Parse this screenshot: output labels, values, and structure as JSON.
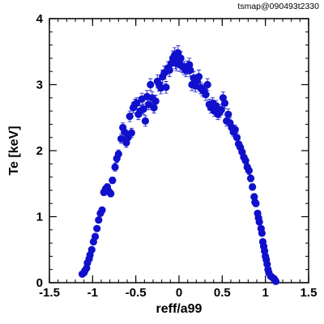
{
  "header": {
    "tag": "tsmap@090493t2330"
  },
  "chart_data": {
    "type": "scatter",
    "title": "",
    "xlabel": "reff/a99",
    "ylabel": "Te [keV]",
    "xlim": [
      -1.5,
      1.5
    ],
    "ylim": [
      0,
      4
    ],
    "xticks": [
      -1.5,
      -1,
      -0.5,
      0,
      0.5,
      1,
      1.5
    ],
    "xtick_labels": [
      "-1.5",
      "-1",
      "-0.5",
      "0",
      "0.5",
      "1",
      "1.5"
    ],
    "yticks": [
      0,
      1,
      2,
      3,
      4
    ],
    "ytick_labels": [
      "0",
      "1",
      "2",
      "3",
      "4"
    ],
    "grid": false,
    "marker_color": "#1010cc",
    "error_bars": true,
    "series": [
      {
        "points": [
          [
            -1.12,
            0.13,
            0.02
          ],
          [
            -1.1,
            0.15,
            0.02
          ],
          [
            -1.09,
            0.18,
            0.02
          ],
          [
            -1.07,
            0.22,
            0.02
          ],
          [
            -1.06,
            0.3,
            0.02
          ],
          [
            -1.04,
            0.36,
            0.02
          ],
          [
            -1.03,
            0.42,
            0.02
          ],
          [
            -1.01,
            0.5,
            0.03
          ],
          [
            -0.99,
            0.62,
            0.03
          ],
          [
            -0.97,
            0.7,
            0.03
          ],
          [
            -0.95,
            0.82,
            0.03
          ],
          [
            -0.93,
            0.95,
            0.04
          ],
          [
            -0.91,
            1.05,
            0.04
          ],
          [
            -0.89,
            1.1,
            0.04
          ],
          [
            -0.87,
            1.37,
            0.05
          ],
          [
            -0.85,
            1.42,
            0.05
          ],
          [
            -0.83,
            1.45,
            0.05
          ],
          [
            -0.81,
            1.38,
            0.05
          ],
          [
            -0.79,
            1.35,
            0.05
          ],
          [
            -0.77,
            1.55,
            0.05
          ],
          [
            -0.74,
            1.75,
            0.06
          ],
          [
            -0.72,
            1.88,
            0.06
          ],
          [
            -0.7,
            1.95,
            0.06
          ],
          [
            -0.67,
            2.18,
            0.07
          ],
          [
            -0.65,
            2.35,
            0.07
          ],
          [
            -0.63,
            2.28,
            0.07
          ],
          [
            -0.61,
            2.12,
            0.07
          ],
          [
            -0.59,
            2.2,
            0.07
          ],
          [
            -0.57,
            2.52,
            0.08
          ],
          [
            -0.55,
            2.27,
            0.07
          ],
          [
            -0.53,
            2.65,
            0.08
          ],
          [
            -0.51,
            2.7,
            0.08
          ],
          [
            -0.49,
            2.72,
            0.08
          ],
          [
            -0.47,
            2.55,
            0.08
          ],
          [
            -0.45,
            2.6,
            0.08
          ],
          [
            -0.43,
            2.78,
            0.09
          ],
          [
            -0.41,
            2.63,
            0.08
          ],
          [
            -0.39,
            2.45,
            0.08
          ],
          [
            -0.37,
            2.82,
            0.09
          ],
          [
            -0.35,
            2.7,
            0.08
          ],
          [
            -0.33,
            3.0,
            0.09
          ],
          [
            -0.31,
            2.8,
            0.09
          ],
          [
            -0.29,
            2.65,
            0.08
          ],
          [
            -0.27,
            2.75,
            0.09
          ],
          [
            -0.25,
            3.05,
            0.1
          ],
          [
            -0.23,
            3.0,
            0.1
          ],
          [
            -0.21,
            2.95,
            0.09
          ],
          [
            -0.19,
            3.12,
            0.1
          ],
          [
            -0.17,
            3.18,
            0.1
          ],
          [
            -0.15,
            2.96,
            0.09
          ],
          [
            -0.13,
            3.25,
            0.1
          ],
          [
            -0.11,
            3.22,
            0.1
          ],
          [
            -0.09,
            3.32,
            0.1
          ],
          [
            -0.07,
            3.4,
            0.11
          ],
          [
            -0.05,
            3.45,
            0.11
          ],
          [
            -0.04,
            3.35,
            0.11
          ],
          [
            -0.03,
            3.32,
            0.11
          ],
          [
            -0.02,
            3.42,
            0.11
          ],
          [
            -0.01,
            3.48,
            0.11
          ],
          [
            0.0,
            3.38,
            0.11
          ],
          [
            0.01,
            3.3,
            0.1
          ],
          [
            0.02,
            3.4,
            0.1
          ],
          [
            0.04,
            3.28,
            0.1
          ],
          [
            0.06,
            3.25,
            0.1
          ],
          [
            0.08,
            3.22,
            0.1
          ],
          [
            0.1,
            3.26,
            0.1
          ],
          [
            0.12,
            3.3,
            0.1
          ],
          [
            0.13,
            3.22,
            0.1
          ],
          [
            0.15,
            3.0,
            0.09
          ],
          [
            0.17,
            3.1,
            0.1
          ],
          [
            0.19,
            2.98,
            0.09
          ],
          [
            0.21,
            3.05,
            0.1
          ],
          [
            0.23,
            3.12,
            0.1
          ],
          [
            0.25,
            2.95,
            0.09
          ],
          [
            0.27,
            2.92,
            0.09
          ],
          [
            0.29,
            2.9,
            0.09
          ],
          [
            0.31,
            2.85,
            0.09
          ],
          [
            0.33,
            3.0,
            0.09
          ],
          [
            0.35,
            2.7,
            0.08
          ],
          [
            0.37,
            2.65,
            0.08
          ],
          [
            0.39,
            2.72,
            0.08
          ],
          [
            0.41,
            2.6,
            0.08
          ],
          [
            0.43,
            2.68,
            0.08
          ],
          [
            0.45,
            2.55,
            0.08
          ],
          [
            0.47,
            2.58,
            0.08
          ],
          [
            0.49,
            2.62,
            0.08
          ],
          [
            0.51,
            2.8,
            0.09
          ],
          [
            0.53,
            2.72,
            0.08
          ],
          [
            0.55,
            2.45,
            0.08
          ],
          [
            0.57,
            2.55,
            0.08
          ],
          [
            0.59,
            2.42,
            0.08
          ],
          [
            0.61,
            2.35,
            0.07
          ],
          [
            0.63,
            2.28,
            0.07
          ],
          [
            0.65,
            2.32,
            0.07
          ],
          [
            0.67,
            2.2,
            0.07
          ],
          [
            0.69,
            2.1,
            0.07
          ],
          [
            0.71,
            2.05,
            0.07
          ],
          [
            0.73,
            1.98,
            0.06
          ],
          [
            0.75,
            1.9,
            0.06
          ],
          [
            0.77,
            1.85,
            0.06
          ],
          [
            0.79,
            1.75,
            0.06
          ],
          [
            0.81,
            1.7,
            0.06
          ],
          [
            0.83,
            1.58,
            0.05
          ],
          [
            0.85,
            1.45,
            0.05
          ],
          [
            0.87,
            1.3,
            0.05
          ],
          [
            0.88,
            1.22,
            0.05
          ],
          [
            0.89,
            1.2,
            0.05
          ],
          [
            0.91,
            1.05,
            0.04
          ],
          [
            0.92,
            0.98,
            0.04
          ],
          [
            0.93,
            0.92,
            0.04
          ],
          [
            0.95,
            0.82,
            0.03
          ],
          [
            0.96,
            0.75,
            0.03
          ],
          [
            0.97,
            0.62,
            0.03
          ],
          [
            0.98,
            0.55,
            0.03
          ],
          [
            0.99,
            0.48,
            0.03
          ],
          [
            1.0,
            0.4,
            0.02
          ],
          [
            1.01,
            0.35,
            0.02
          ],
          [
            1.02,
            0.28,
            0.02
          ],
          [
            1.03,
            0.2,
            0.02
          ],
          [
            1.04,
            0.15,
            0.02
          ],
          [
            1.06,
            0.1,
            0.02
          ],
          [
            1.08,
            0.08,
            0.02
          ],
          [
            1.1,
            0.06,
            0.02
          ],
          [
            1.11,
            0.04,
            0.02
          ],
          [
            1.12,
            0.02,
            0.02
          ]
        ]
      }
    ]
  }
}
